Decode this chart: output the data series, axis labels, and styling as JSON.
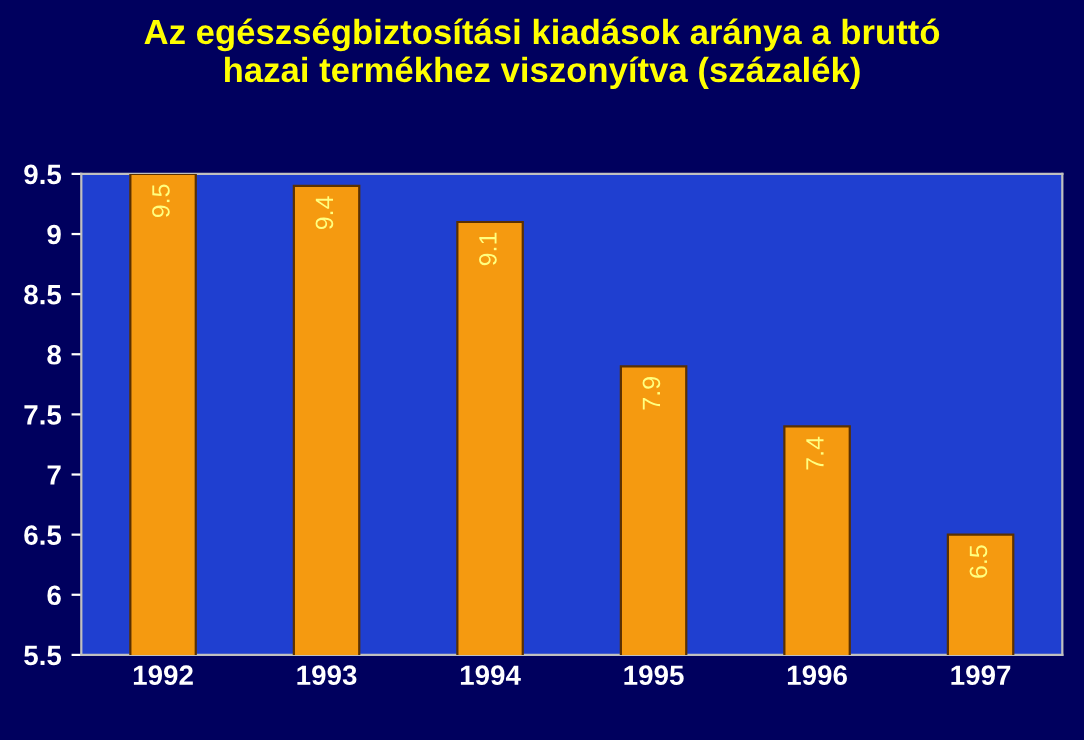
{
  "chart_data": {
    "type": "bar",
    "title": "Az egészségbiztosítási kiadások aránya a bruttó\nhazai termékhez viszonyítva (százalék)",
    "categories": [
      "1992",
      "1993",
      "1994",
      "1995",
      "1996",
      "1997"
    ],
    "values": [
      9.5,
      9.4,
      9.1,
      7.9,
      7.4,
      6.5
    ],
    "color": "#f59a10",
    "ylim": [
      5.5,
      9.5
    ],
    "yticks": [
      5.5,
      6,
      6.5,
      7,
      7.5,
      8,
      8.5,
      9,
      9.5
    ],
    "data_labels": true,
    "grid": false,
    "legend": false
  }
}
